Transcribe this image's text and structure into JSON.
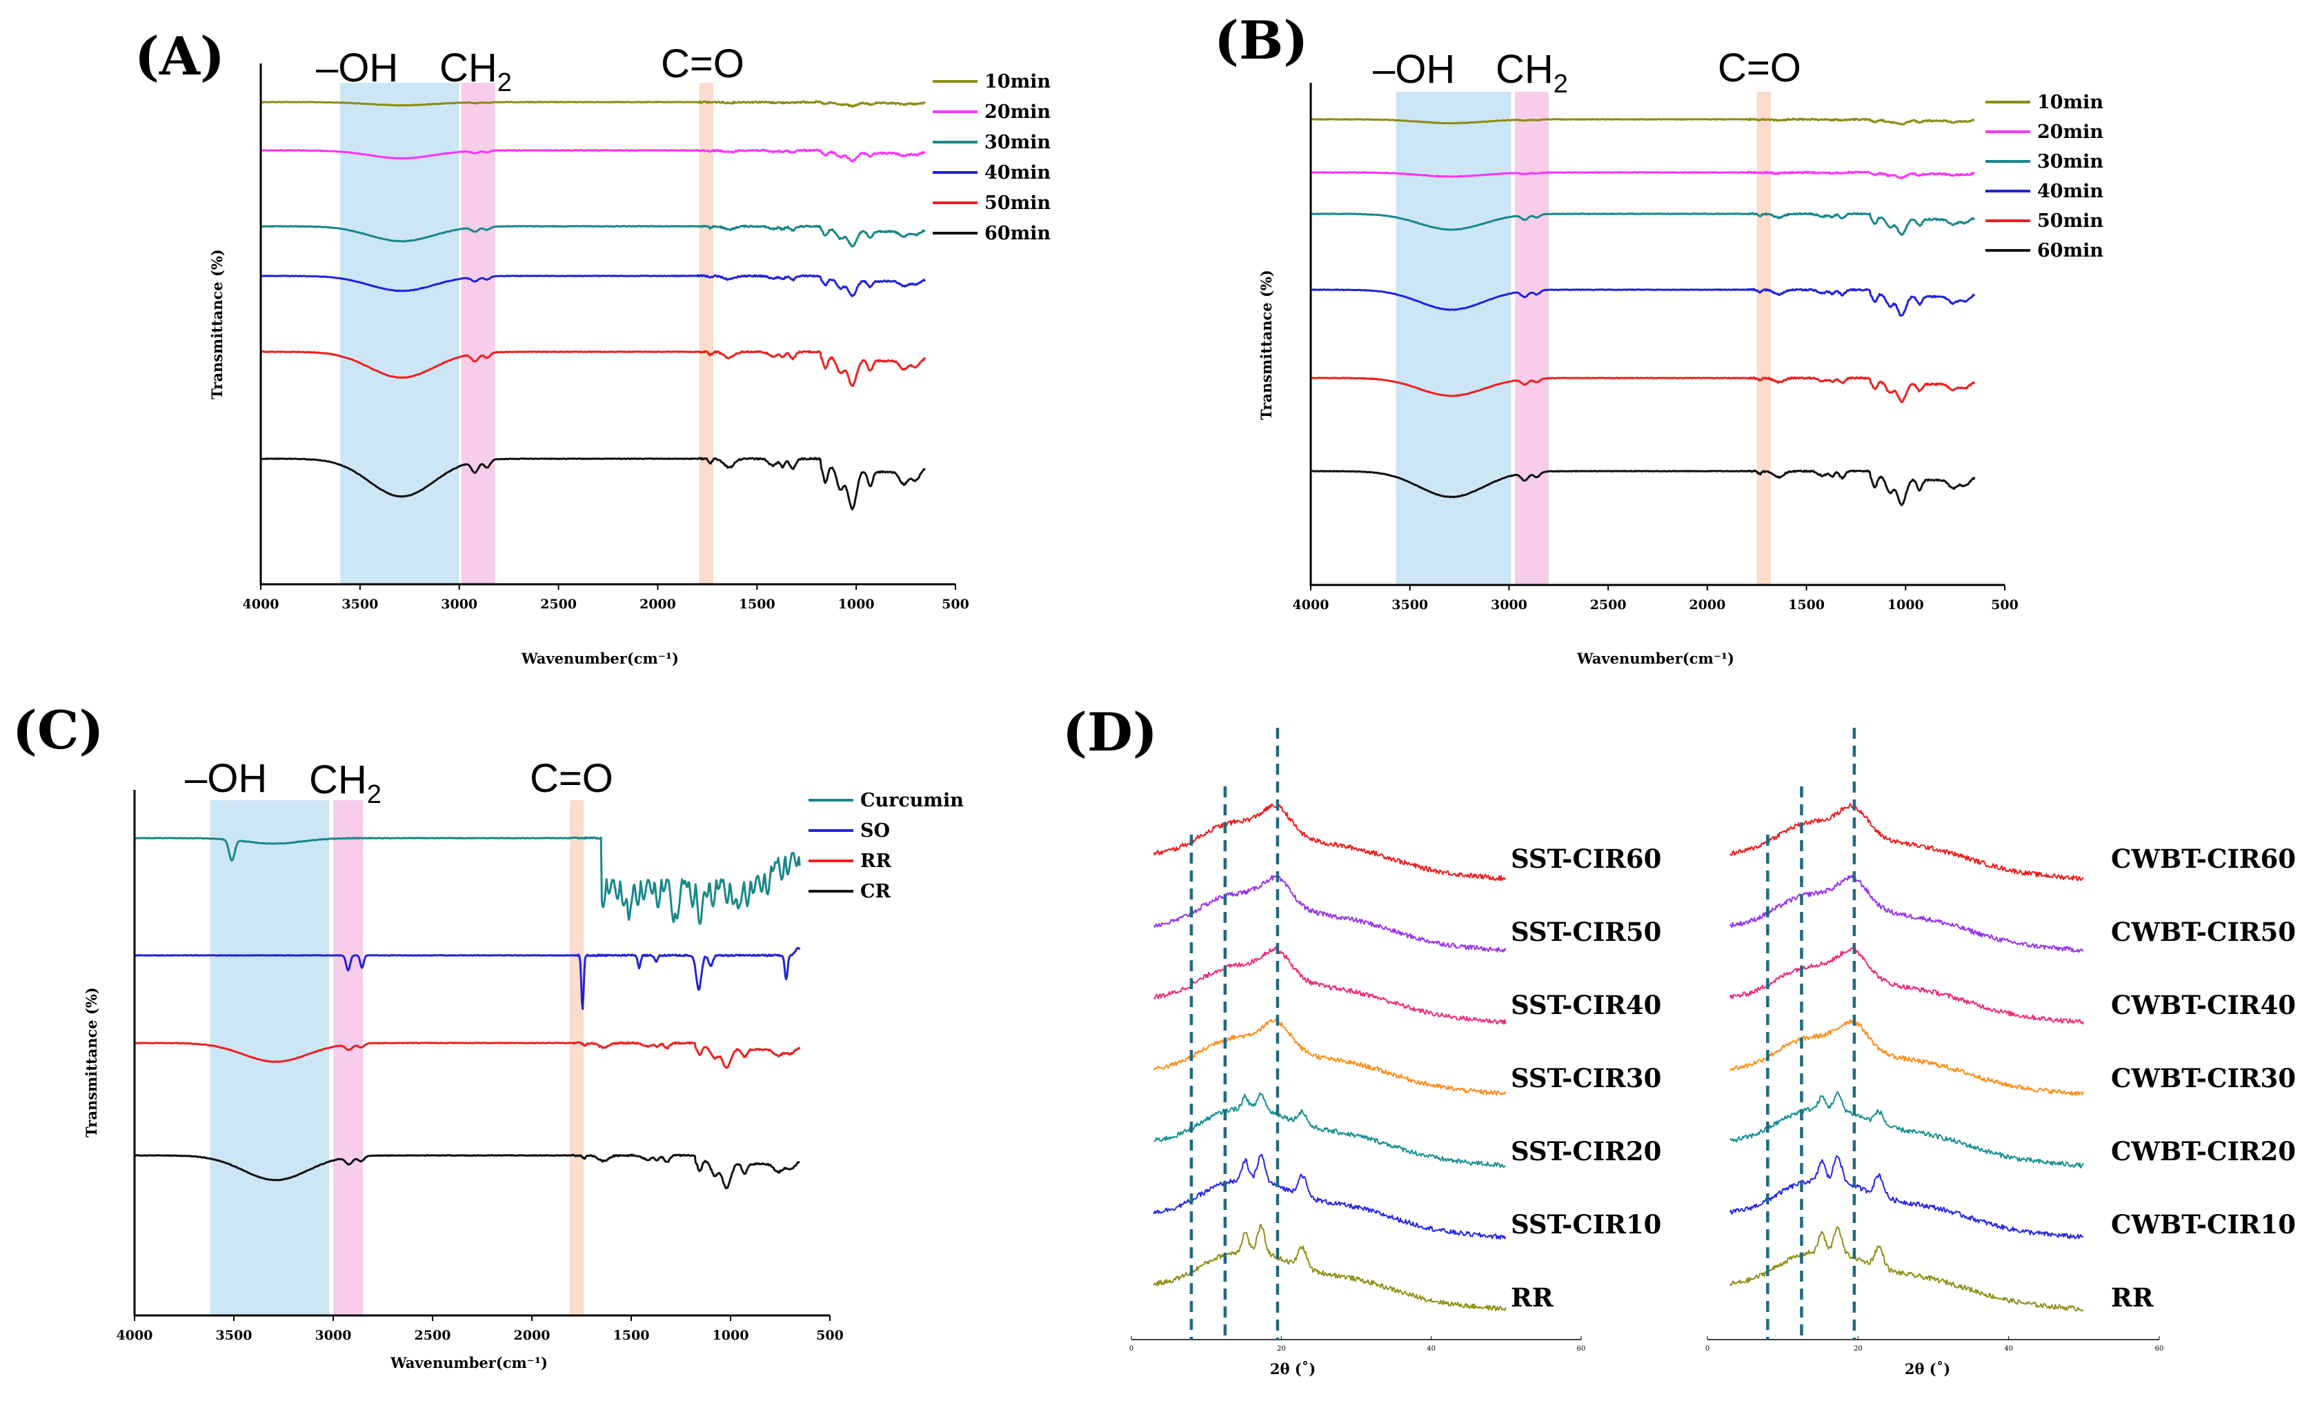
{
  "panels": [
    {
      "id": "A",
      "label": "(A)",
      "band_labels": [
        "–OH",
        "CH",
        "2",
        "C=O"
      ],
      "xlabel": "Wavenumber(cm⁻¹)",
      "ylabel": "Transmittance (%)",
      "xticks": [
        "4000",
        "3500",
        "3000",
        "2500",
        "2000",
        "1500",
        "1000",
        "500"
      ],
      "legend": [
        "10min",
        "20min",
        "30min",
        "40min",
        "50min",
        "60min"
      ],
      "colors": [
        "#8c8c14",
        "#ff33ff",
        "#18878a",
        "#2222dd",
        "#ee2020",
        "#111111"
      ]
    },
    {
      "id": "B",
      "label": "(B)",
      "band_labels": [
        "–OH",
        "CH",
        "2",
        "C=O"
      ],
      "xlabel": "Wavenumber(cm⁻¹)",
      "ylabel": "Transmittance (%)",
      "xticks": [
        "4000",
        "3500",
        "3000",
        "2500",
        "2000",
        "1500",
        "1000",
        "500"
      ],
      "legend": [
        "10min",
        "20min",
        "30min",
        "40min",
        "50min",
        "60min"
      ],
      "colors": [
        "#8c8c14",
        "#ff33ff",
        "#18878a",
        "#2222dd",
        "#ee2020",
        "#111111"
      ]
    },
    {
      "id": "C",
      "label": "(C)",
      "band_labels": [
        "–OH",
        "CH",
        "2",
        "C=O"
      ],
      "xlabel": "Wavenumber(cm⁻¹)",
      "ylabel": "Transmittance (%)",
      "xticks": [
        "4000",
        "3500",
        "3000",
        "2500",
        "2000",
        "1500",
        "1000",
        "500"
      ],
      "legend": [
        "Curcumin",
        "SO",
        "RR",
        "CR"
      ],
      "colors": [
        "#18878a",
        "#2222dd",
        "#ee2020",
        "#111111"
      ]
    },
    {
      "id": "D",
      "label": "(D)",
      "xlabel": "2θ (˚)",
      "xticks": [
        "0",
        "20",
        "40",
        "60"
      ],
      "left_series": [
        "SST-CIR60",
        "SST-CIR50",
        "SST-CIR40",
        "SST-CIR30",
        "SST-CIR20",
        "SST-CIR10",
        "RR"
      ],
      "right_series": [
        "CWBT-CIR60",
        "CWBT-CIR50",
        "CWBT-CIR40",
        "CWBT-CIR30",
        "CWBT-CIR20",
        "CWBT-CIR10",
        "RR"
      ],
      "colors": [
        "#ee1c1c",
        "#9933ee",
        "#ee2a7a",
        "#ff8c1a",
        "#15908e",
        "#2424ee",
        "#8f8f18"
      ]
    }
  ],
  "chart_data": [
    {
      "type": "line",
      "title": "(A)",
      "xlabel": "Wavenumber(cm⁻¹)",
      "ylabel": "Transmittance (%)",
      "xlim": [
        4000,
        500
      ],
      "highlight_bands": [
        {
          "label": "–OH",
          "range": [
            3600,
            3000
          ]
        },
        {
          "label": "CH2",
          "range": [
            2990,
            2820
          ]
        },
        {
          "label": "C=O",
          "range": [
            1790,
            1720
          ]
        }
      ],
      "series": [
        {
          "name": "10min",
          "offset": 6.3,
          "scale": 0.25
        },
        {
          "name": "20min",
          "offset": 5.5,
          "scale": 0.45
        },
        {
          "name": "30min",
          "offset": 4.3,
          "scale": 0.75
        },
        {
          "name": "40min",
          "offset": 3.5,
          "scale": 0.75
        },
        {
          "name": "50min",
          "offset": 2.4,
          "scale": 1.0
        },
        {
          "name": "60min",
          "offset": 1.1,
          "scale": 1.15
        }
      ]
    },
    {
      "type": "line",
      "title": "(B)",
      "xlabel": "Wavenumber(cm⁻¹)",
      "ylabel": "Transmittance (%)",
      "xlim": [
        4000,
        500
      ],
      "highlight_bands": [
        {
          "label": "–OH",
          "range": [
            3570,
            2990
          ]
        },
        {
          "label": "CH2",
          "range": [
            2970,
            2800
          ]
        },
        {
          "label": "C=O",
          "range": [
            1750,
            1680
          ]
        }
      ],
      "series": [
        {
          "name": "10min",
          "offset": 6.3,
          "scale": 0.3
        },
        {
          "name": "20min",
          "offset": 5.5,
          "scale": 0.35
        },
        {
          "name": "30min",
          "offset": 4.7,
          "scale": 0.75
        },
        {
          "name": "40min",
          "offset": 3.5,
          "scale": 0.85
        },
        {
          "name": "50min",
          "offset": 2.4,
          "scale": 0.8
        },
        {
          "name": "60min",
          "offset": 1.2,
          "scale": 1.0
        }
      ]
    },
    {
      "type": "line",
      "title": "(C)",
      "xlabel": "Wavenumber(cm⁻¹)",
      "ylabel": "Transmittance (%)",
      "xlim": [
        4000,
        500
      ],
      "highlight_bands": [
        {
          "label": "–OH",
          "range": [
            3620,
            3020
          ]
        },
        {
          "label": "CH2",
          "range": [
            3000,
            2850
          ]
        },
        {
          "label": "C=O",
          "range": [
            1810,
            1740
          ]
        }
      ],
      "series": [
        {
          "name": "Curcumin",
          "offset": 4.3
        },
        {
          "name": "SO",
          "offset": 3.2
        },
        {
          "name": "RR",
          "offset": 2.1
        },
        {
          "name": "CR",
          "offset": 1.1
        }
      ]
    },
    {
      "type": "line",
      "title": "(D)",
      "xlabel": "2θ (˚)",
      "xlim": [
        0,
        60
      ],
      "reference_lines_2theta": [
        8,
        12.5,
        19.5
      ],
      "series_left": [
        "SST-CIR60",
        "SST-CIR50",
        "SST-CIR40",
        "SST-CIR30",
        "SST-CIR20",
        "SST-CIR10",
        "RR"
      ],
      "series_right": [
        "CWBT-CIR60",
        "CWBT-CIR50",
        "CWBT-CIR40",
        "CWBT-CIR30",
        "CWBT-CIR20",
        "CWBT-CIR10",
        "RR"
      ]
    }
  ]
}
